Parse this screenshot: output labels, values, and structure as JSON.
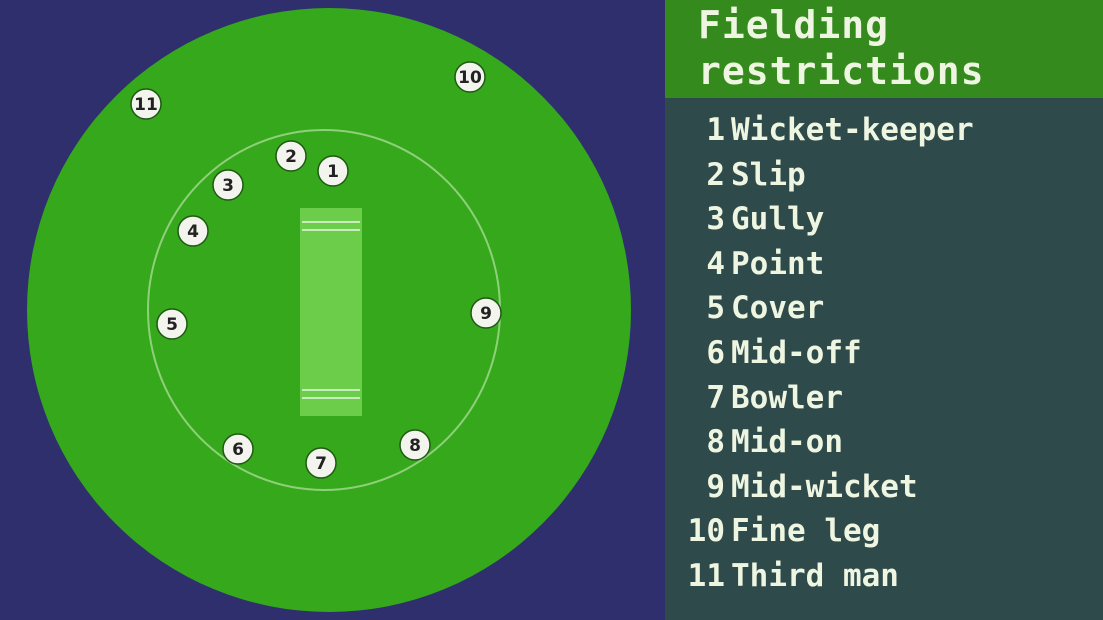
{
  "title_line1": "Fielding",
  "title_line2": "restrictions",
  "colors": {
    "background": "#2f2f6e",
    "outfield": "#36a81c",
    "infield_ring": "#8fd07a",
    "pitch": "#6ccd4b",
    "panel": "#2f4a4a",
    "header": "#358a1e",
    "text": "#eef6e2"
  },
  "fielders": [
    {
      "number": "1",
      "name": "Wicket-keeper"
    },
    {
      "number": "2",
      "name": "Slip"
    },
    {
      "number": "3",
      "name": "Gully"
    },
    {
      "number": "4",
      "name": "Point"
    },
    {
      "number": "5",
      "name": "Cover"
    },
    {
      "number": "6",
      "name": "Mid-off"
    },
    {
      "number": "7",
      "name": "Bowler"
    },
    {
      "number": "8",
      "name": "Mid-on"
    },
    {
      "number": "9",
      "name": "Mid-wicket"
    },
    {
      "number": "10",
      "name": "Fine leg"
    },
    {
      "number": "11",
      "name": "Third man"
    }
  ]
}
